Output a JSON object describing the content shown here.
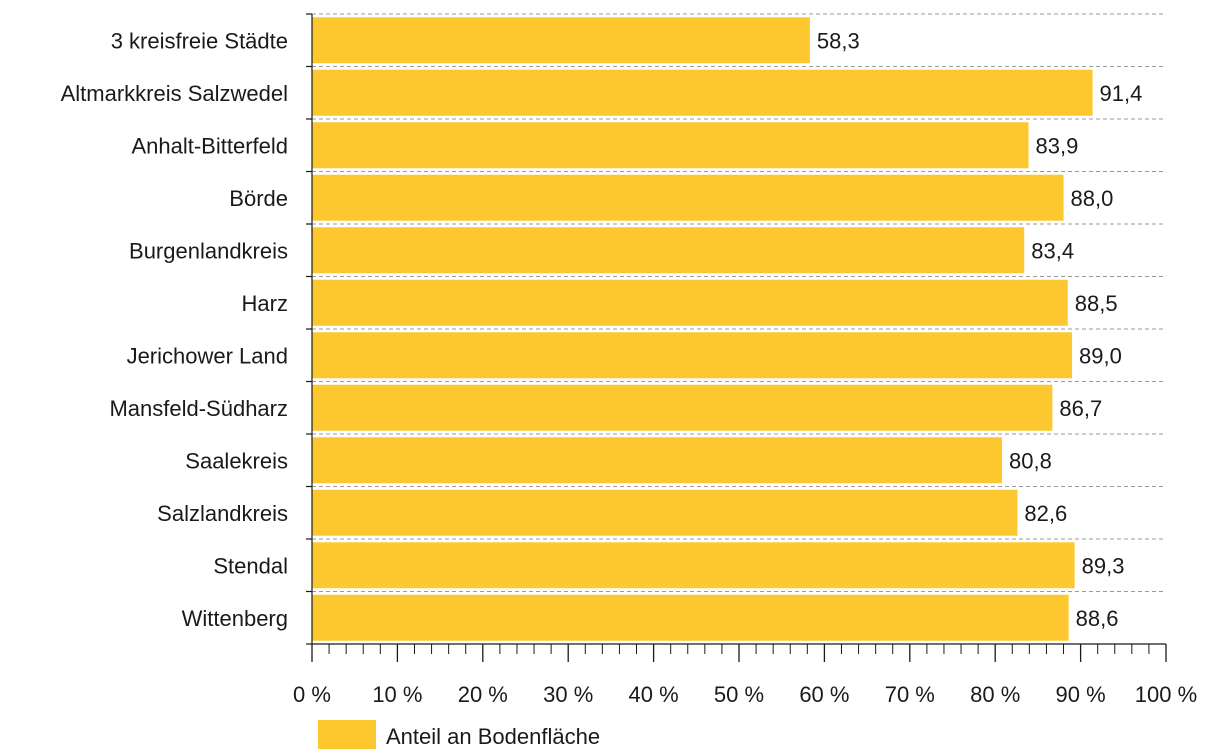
{
  "chart_data": {
    "type": "bar",
    "orientation": "horizontal",
    "categories": [
      "3 kreisfreie Städte",
      "Altmarkkreis Salzwedel",
      "Anhalt-Bitterfeld",
      "Börde",
      "Burgenlandkreis",
      "Harz",
      "Jerichower Land",
      "Mansfeld-Südharz",
      "Saalekreis",
      "Salzlandkreis",
      "Stendal",
      "Wittenberg"
    ],
    "series": [
      {
        "name": "Anteil an Bodenfläche",
        "values": [
          58.3,
          91.4,
          83.9,
          88.0,
          83.4,
          88.5,
          89.0,
          86.7,
          80.8,
          82.6,
          89.3,
          88.6
        ],
        "labels": [
          "58,3",
          "91,4",
          "83,9",
          "88,0",
          "83,4",
          "88,5",
          "89,0",
          "86,7",
          "80,8",
          "82,6",
          "89,3",
          "88,6"
        ],
        "color": "#FDC82F"
      }
    ],
    "xlim": [
      0,
      100
    ],
    "xticks": [
      0,
      10,
      20,
      30,
      40,
      50,
      60,
      70,
      80,
      90,
      100
    ],
    "xtick_labels": [
      "0 %",
      "10 %",
      "20 %",
      "30 %",
      "40 %",
      "50 %",
      "60 %",
      "70 %",
      "80 %",
      "90 %",
      "100 %"
    ],
    "minor_tick_step": 2,
    "grid": "horizontal-dashed",
    "legend": "bottom-left",
    "title": "",
    "xlabel": "",
    "ylabel": ""
  }
}
